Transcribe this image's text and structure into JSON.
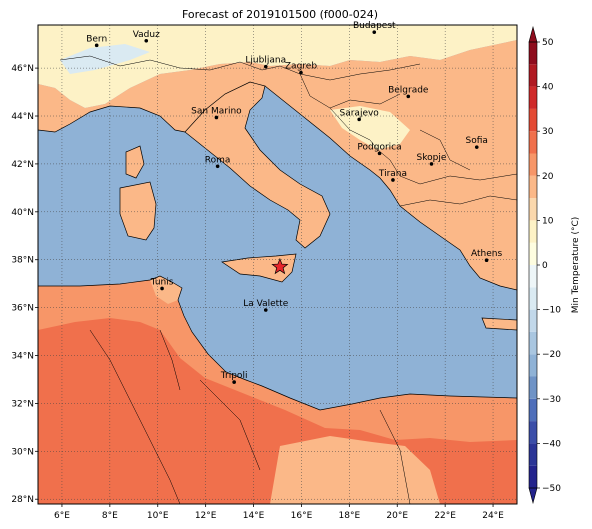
{
  "title": "Forecast of 2019101500 (f000-024)",
  "map": {
    "lon_range": [
      5,
      25
    ],
    "lat_range": [
      27.8,
      47.8
    ],
    "x_ticks": [
      {
        "lon": 6,
        "label": "6°E"
      },
      {
        "lon": 8,
        "label": "8°E"
      },
      {
        "lon": 10,
        "label": "10°E"
      },
      {
        "lon": 12,
        "label": "12°E"
      },
      {
        "lon": 14,
        "label": "14°E"
      },
      {
        "lon": 16,
        "label": "16°E"
      },
      {
        "lon": 18,
        "label": "18°E"
      },
      {
        "lon": 20,
        "label": "20°E"
      },
      {
        "lon": 22,
        "label": "22°E"
      },
      {
        "lon": 24,
        "label": "24°E"
      }
    ],
    "y_ticks": [
      {
        "lat": 28,
        "label": "28°N"
      },
      {
        "lat": 30,
        "label": "30°N"
      },
      {
        "lat": 32,
        "label": "32°N"
      },
      {
        "lat": 34,
        "label": "34°N"
      },
      {
        "lat": 36,
        "label": "36°N"
      },
      {
        "lat": 38,
        "label": "38°N"
      },
      {
        "lat": 40,
        "label": "40°N"
      },
      {
        "lat": 42,
        "label": "42°N"
      },
      {
        "lat": 44,
        "label": "44°N"
      },
      {
        "lat": 46,
        "label": "46°N"
      }
    ],
    "grid": "dotted",
    "sea_color": "#8fb2d6",
    "cities": [
      {
        "name": "Bern",
        "lon": 7.45,
        "lat": 46.95
      },
      {
        "name": "Vaduz",
        "lon": 9.52,
        "lat": 47.14
      },
      {
        "name": "Budapest",
        "lon": 19.04,
        "lat": 47.5
      },
      {
        "name": "Ljubljana",
        "lon": 14.51,
        "lat": 46.06
      },
      {
        "name": "Zagreb",
        "lon": 15.98,
        "lat": 45.81
      },
      {
        "name": "Belgrade",
        "lon": 20.46,
        "lat": 44.82
      },
      {
        "name": "San Marino",
        "lon": 12.45,
        "lat": 43.94
      },
      {
        "name": "Sarajevo",
        "lon": 18.41,
        "lat": 43.86
      },
      {
        "name": "Sofia",
        "lon": 23.32,
        "lat": 42.7
      },
      {
        "name": "Podgorica",
        "lon": 19.26,
        "lat": 42.44
      },
      {
        "name": "Skopje",
        "lon": 21.43,
        "lat": 42.0
      },
      {
        "name": "Roma",
        "lon": 12.5,
        "lat": 41.9
      },
      {
        "name": "Tirana",
        "lon": 19.82,
        "lat": 41.33
      },
      {
        "name": "Athens",
        "lon": 23.73,
        "lat": 37.98
      },
      {
        "name": "Tunis",
        "lon": 10.18,
        "lat": 36.8
      },
      {
        "name": "La Valette",
        "lon": 14.51,
        "lat": 35.9
      },
      {
        "name": "Tripoli",
        "lon": 13.19,
        "lat": 32.89
      }
    ],
    "star_marker": {
      "lon": 15.1,
      "lat": 37.7,
      "color": "#e8262b"
    }
  },
  "colorbar": {
    "label": "Min Temperature (°C)",
    "ticks": [
      "−50",
      "−40",
      "−30",
      "−20",
      "−10",
      "0",
      "10",
      "20",
      "30",
      "40",
      "50"
    ],
    "levels": [
      {
        "from": -50,
        "to": -45,
        "color": "#23238c"
      },
      {
        "from": -45,
        "to": -40,
        "color": "#2b3596"
      },
      {
        "from": -40,
        "to": -35,
        "color": "#3b4ea8"
      },
      {
        "from": -35,
        "to": -30,
        "color": "#4f6fba"
      },
      {
        "from": -30,
        "to": -25,
        "color": "#6f93c6"
      },
      {
        "from": -25,
        "to": -20,
        "color": "#8fb2d6"
      },
      {
        "from": -20,
        "to": -15,
        "color": "#a9c6e0"
      },
      {
        "from": -15,
        "to": -10,
        "color": "#c2d8ea"
      },
      {
        "from": -10,
        "to": -5,
        "color": "#daeaf2"
      },
      {
        "from": -5,
        "to": 0,
        "color": "#eef6f8"
      },
      {
        "from": 0,
        "to": 5,
        "color": "#fefde0"
      },
      {
        "from": 5,
        "to": 10,
        "color": "#fdf2c6"
      },
      {
        "from": 10,
        "to": 15,
        "color": "#fbd8ad"
      },
      {
        "from": 15,
        "to": 20,
        "color": "#fbb888"
      },
      {
        "from": 20,
        "to": 25,
        "color": "#f79668"
      },
      {
        "from": 25,
        "to": 30,
        "color": "#f0704c"
      },
      {
        "from": 30,
        "to": 35,
        "color": "#e34a34"
      },
      {
        "from": 35,
        "to": 40,
        "color": "#cf2a2a"
      },
      {
        "from": 40,
        "to": 45,
        "color": "#b01a22"
      },
      {
        "from": 45,
        "to": 50,
        "color": "#8e0c1d"
      }
    ],
    "extend": "both"
  }
}
